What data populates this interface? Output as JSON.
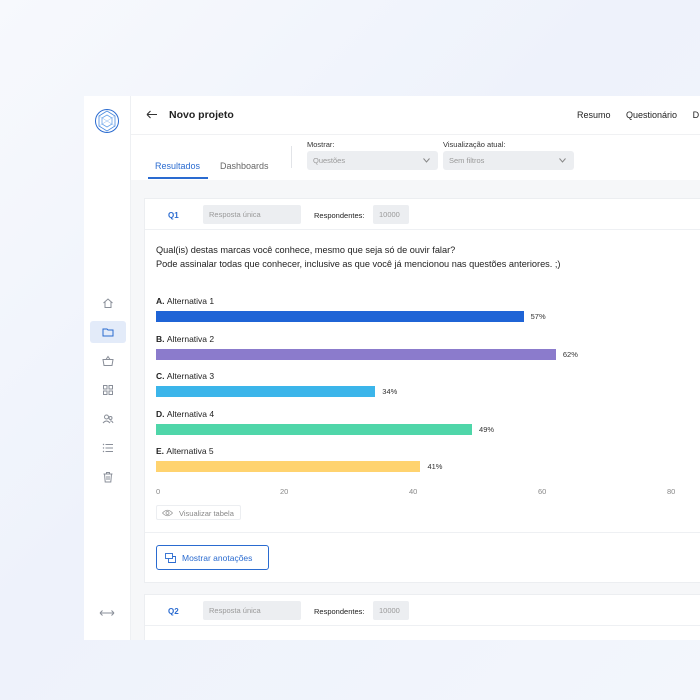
{
  "header": {
    "title": "Novo projeto",
    "nav": [
      "Resumo",
      "Questionário",
      "D"
    ]
  },
  "tabs": [
    {
      "label": "Resultados",
      "active": true
    },
    {
      "label": "Dashboards",
      "active": false
    }
  ],
  "filters": {
    "show_label": "Mostrar:",
    "show_value": "Questões",
    "view_label": "Visualização atual:",
    "view_value": "Sem filtros"
  },
  "sidebar": {
    "icons": [
      "home-icon",
      "folder-icon",
      "basket-icon",
      "grid-icon",
      "users-icon",
      "list-icon",
      "trash-icon"
    ],
    "active": "folder-icon"
  },
  "question1": {
    "number": "Q1",
    "type": "Resposta única",
    "respondents_label": "Respondentes:",
    "respondents": "10000",
    "text_line1": "Qual(is) destas marcas você conhece, mesmo que seja só de ouvir falar?",
    "text_line2": "Pode assinalar todas que conhecer, inclusive as que você já mencionou nas questões anteriores. ;)",
    "view_table": "Visualizar tabela",
    "annotations_button": "Mostrar anotações"
  },
  "question2": {
    "number": "Q2",
    "type": "Resposta única",
    "respondents_label": "Respondentes:",
    "respondents": "10000"
  },
  "chart_data": {
    "type": "bar",
    "orientation": "horizontal",
    "categories_prefix": [
      "A.",
      "B.",
      "C.",
      "D.",
      "E."
    ],
    "categories": [
      "Alternativa 1",
      "Alternativa 2",
      "Alternativa 3",
      "Alternativa 4",
      "Alternativa 5"
    ],
    "values": [
      57,
      62,
      34,
      49,
      41
    ],
    "value_labels": [
      "57%",
      "62%",
      "34%",
      "49%",
      "41%"
    ],
    "colors": [
      "#1f64d6",
      "#8b7bcc",
      "#3bb5ea",
      "#4fd6a9",
      "#ffd36f"
    ],
    "x_ticks": [
      "0",
      "20",
      "40",
      "60",
      "80"
    ],
    "xlim": [
      0,
      80
    ]
  }
}
